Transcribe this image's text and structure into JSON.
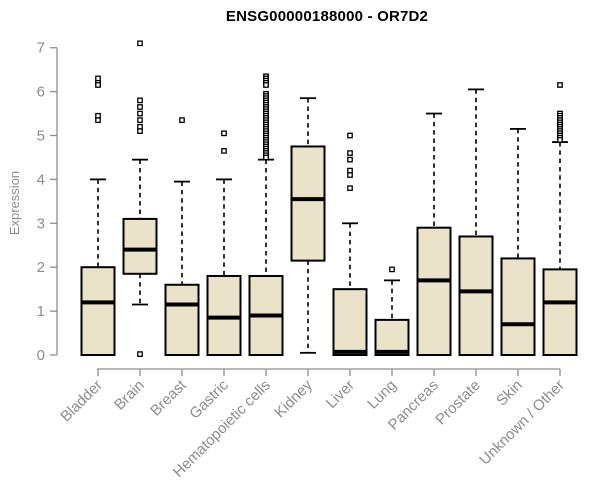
{
  "chart_data": {
    "type": "boxplot",
    "title": "ENSG00000188000 - OR7D2",
    "ylabel": "Expression",
    "xlabel": "",
    "ylim": [
      0,
      7.1
    ],
    "yticks": [
      0,
      1,
      2,
      3,
      4,
      5,
      6,
      7
    ],
    "grid": "off",
    "legend": "none",
    "categories": [
      "Bladder",
      "Brain",
      "Breast",
      "Gastric",
      "Hematopoietic cells",
      "Kidney",
      "Liver",
      "Lung",
      "Pancreas",
      "Prostate",
      "Skin",
      "Unknown / Other"
    ],
    "boxes": [
      {
        "category": "Bladder",
        "whisker_low": 0,
        "q1": 0,
        "median": 1.2,
        "q3": 2.0,
        "whisker_high": 4.0,
        "outliers": [
          6.3,
          6.2,
          6.15,
          5.45,
          5.35
        ]
      },
      {
        "category": "Brain",
        "whisker_low": 1.15,
        "q1": 1.85,
        "median": 2.4,
        "q3": 3.1,
        "whisker_high": 4.45,
        "outliers": [
          7.1,
          5.8,
          5.65,
          5.5,
          5.35,
          5.2,
          5.1,
          0.02
        ]
      },
      {
        "category": "Breast",
        "whisker_low": 0,
        "q1": 0,
        "median": 1.15,
        "q3": 1.6,
        "whisker_high": 3.95,
        "outliers": [
          5.35
        ]
      },
      {
        "category": "Gastric",
        "whisker_low": 0,
        "q1": 0,
        "median": 0.85,
        "q3": 1.8,
        "whisker_high": 4.0,
        "outliers": [
          5.05,
          4.65
        ]
      },
      {
        "category": "Hematopoietic cells",
        "whisker_low": 0,
        "q1": 0,
        "median": 0.9,
        "q3": 1.8,
        "whisker_high": 4.45,
        "outliers": [
          6.35,
          6.3,
          6.25,
          6.2,
          6.15,
          5.95,
          5.9,
          5.85,
          5.8,
          5.75,
          5.7,
          5.65,
          5.6,
          5.55,
          5.5,
          5.45,
          5.4,
          5.35,
          5.3,
          5.25,
          5.2,
          5.15,
          5.1,
          5.05,
          5.0,
          4.95,
          4.9,
          4.85,
          4.8,
          4.75,
          4.7,
          4.65,
          4.6,
          4.55,
          4.5
        ]
      },
      {
        "category": "Kidney",
        "whisker_low": 0.05,
        "q1": 2.15,
        "median": 3.55,
        "q3": 4.75,
        "whisker_high": 5.85,
        "outliers": []
      },
      {
        "category": "Liver",
        "whisker_low": 0,
        "q1": 0,
        "median": 0.07,
        "q3": 1.5,
        "whisker_high": 3.0,
        "outliers": [
          5.0,
          4.6,
          4.45,
          4.2,
          4.1,
          3.8
        ]
      },
      {
        "category": "Lung",
        "whisker_low": 0,
        "q1": 0,
        "median": 0.07,
        "q3": 0.8,
        "whisker_high": 1.7,
        "outliers": [
          1.95
        ]
      },
      {
        "category": "Pancreas",
        "whisker_low": 0,
        "q1": 0,
        "median": 1.7,
        "q3": 2.9,
        "whisker_high": 5.5,
        "outliers": []
      },
      {
        "category": "Prostate",
        "whisker_low": 0,
        "q1": 0,
        "median": 1.45,
        "q3": 2.7,
        "whisker_high": 6.05,
        "outliers": []
      },
      {
        "category": "Skin",
        "whisker_low": 0,
        "q1": 0,
        "median": 0.7,
        "q3": 2.2,
        "whisker_high": 5.15,
        "outliers": []
      },
      {
        "category": "Unknown / Other",
        "whisker_low": 0,
        "q1": 0,
        "median": 1.2,
        "q3": 1.95,
        "whisker_high": 4.85,
        "outliers": [
          6.15,
          5.5,
          5.45,
          5.4,
          5.35,
          5.3,
          5.25,
          5.2,
          5.15,
          5.1,
          5.05,
          5.0,
          4.95,
          4.9
        ]
      }
    ],
    "colors": {
      "box_fill": "#EAE3C9",
      "box_border": "#000000",
      "median": "#000000",
      "whisker": "#000000",
      "outlier": "#000000",
      "axis": "#8f8f8f",
      "tick_label": "#8c8c8c",
      "title": "#000000",
      "background": "#ffffff"
    }
  }
}
